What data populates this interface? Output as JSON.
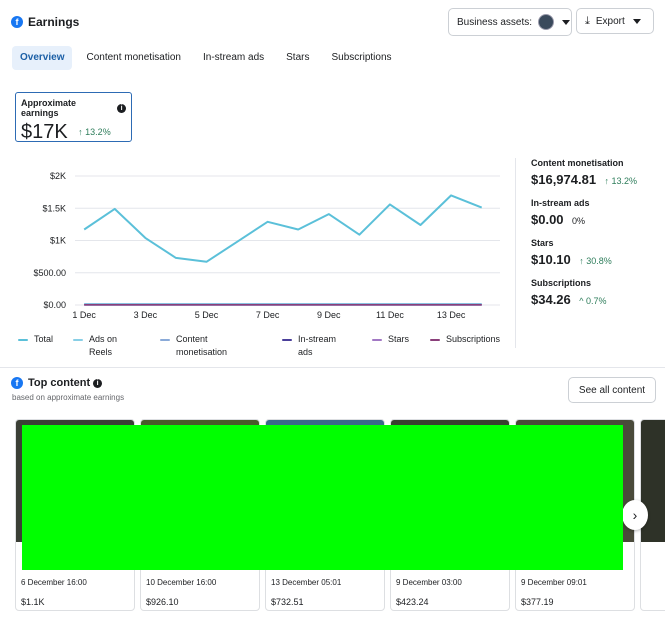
{
  "header": {
    "title": "Earnings",
    "business_assets_label": "Business assets:",
    "export_label": "Export"
  },
  "tabs": [
    {
      "label": "Overview",
      "active": true
    },
    {
      "label": "Content monetisation",
      "active": false
    },
    {
      "label": "In-stream ads",
      "active": false
    },
    {
      "label": "Stars",
      "active": false
    },
    {
      "label": "Subscriptions",
      "active": false
    }
  ],
  "summary": {
    "label": "Approximate earnings",
    "value": "$17K",
    "change": "↑ 13.2%"
  },
  "chart_data": {
    "type": "line",
    "title": "",
    "xlabel": "",
    "ylabel": "",
    "ylim": [
      0,
      2000
    ],
    "y_ticks": [
      "$2K",
      "$1.5K",
      "$1K",
      "$500.00",
      "$0.00"
    ],
    "y_tick_values": [
      2000,
      1500,
      1000,
      500,
      0
    ],
    "x_ticks": [
      "1 Dec",
      "3 Dec",
      "5 Dec",
      "7 Dec",
      "9 Dec",
      "11 Dec",
      "13 Dec"
    ],
    "x_tick_days": [
      1,
      3,
      5,
      7,
      9,
      11,
      13
    ],
    "x_range_days": [
      0.7,
      14.6
    ],
    "series": [
      {
        "name": "Total",
        "color": "#5bc0d9",
        "days": [
          1,
          2,
          3,
          4,
          5,
          6,
          7,
          8,
          9,
          10,
          11,
          12,
          13,
          14
        ],
        "values": [
          1170,
          1490,
          1040,
          730,
          670,
          980,
          1290,
          1170,
          1410,
          1090,
          1560,
          1240,
          1700,
          1510
        ]
      },
      {
        "name": "Ads on Reels",
        "color": "#88cfe6",
        "days": [
          1,
          14
        ],
        "values": [
          20,
          20
        ]
      },
      {
        "name": "Content monetisation",
        "color": "#8aaad8",
        "days": [
          1,
          14
        ],
        "values": [
          10,
          10
        ]
      },
      {
        "name": "In-stream ads",
        "color": "#4a3f9a",
        "days": [
          1,
          14
        ],
        "values": [
          0,
          0
        ]
      },
      {
        "name": "Stars",
        "color": "#a278c4",
        "days": [
          1,
          14
        ],
        "values": [
          5,
          5
        ]
      },
      {
        "name": "Subscriptions",
        "color": "#8a3f7a",
        "days": [
          1,
          14
        ],
        "values": [
          3,
          3
        ]
      }
    ]
  },
  "legend": [
    {
      "label": "Total",
      "color": "#5bc0d9"
    },
    {
      "label": "Ads on Reels",
      "color": "#88cfe6"
    },
    {
      "label": "Content monetisation",
      "color": "#8aaad8"
    },
    {
      "label": "In-stream ads",
      "color": "#4a3f9a"
    },
    {
      "label": "Stars",
      "color": "#a278c4"
    },
    {
      "label": "Subscriptions",
      "color": "#8a3f7a"
    }
  ],
  "metrics": [
    {
      "label": "Content monetisation",
      "value": "$16,974.81",
      "change": "↑ 13.2%"
    },
    {
      "label": "In-stream ads",
      "value": "$0.00",
      "change": "0%"
    },
    {
      "label": "Stars",
      "value": "$10.10",
      "change": "↑ 30.8%"
    },
    {
      "label": "Subscriptions",
      "value": "$34.26",
      "change": "^ 0.7%"
    }
  ],
  "top_content": {
    "title": "Top content",
    "subtitle": "based on approximate earnings",
    "see_all_label": "See all content",
    "cards": [
      {
        "time": "6 December 16:00",
        "value": "$1.1K"
      },
      {
        "time": "10 December 16:00",
        "value": "$926.10"
      },
      {
        "time": "13 December 05:01",
        "value": "$732.51"
      },
      {
        "time": "9 December 03:00",
        "value": "$423.24"
      },
      {
        "time": "9 December 09:01",
        "value": "$377.19"
      }
    ]
  }
}
